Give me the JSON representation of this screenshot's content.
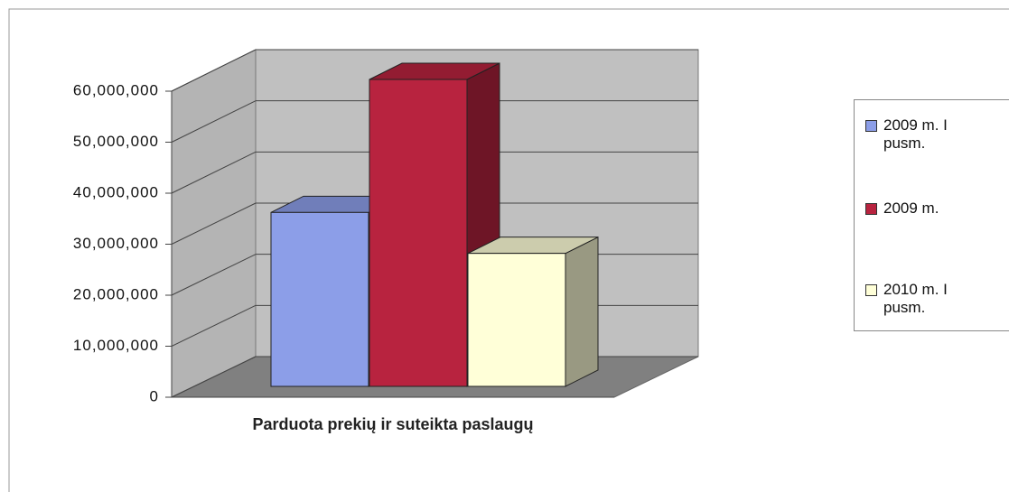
{
  "chart_data": {
    "type": "bar3d",
    "categories": [
      "Parduota prekių ir suteikta paslaugų"
    ],
    "series": [
      {
        "name": "2009 m. I pusm.",
        "color": "#8c9ee8",
        "values": [
          34000000
        ]
      },
      {
        "name": "2009 m.",
        "color": "#b8233f",
        "values": [
          60000000
        ]
      },
      {
        "name": "2010 m. I pusm.",
        "color": "#ffffd8",
        "values": [
          26000000
        ]
      }
    ],
    "ylim": [
      0,
      60000000
    ],
    "yticks": [
      0,
      {
        "value": 10000000,
        "label": "10,000,000"
      },
      {
        "value": 20000000,
        "label": "20,000,000"
      },
      {
        "value": 30000000,
        "label": "30,000,000"
      },
      {
        "value": 40000000,
        "label": "40,000,000"
      },
      {
        "value": 50000000,
        "label": "50,000,000"
      },
      {
        "value": 60000000,
        "label": "60,000,000"
      }
    ],
    "grid": true,
    "legend": "right"
  }
}
